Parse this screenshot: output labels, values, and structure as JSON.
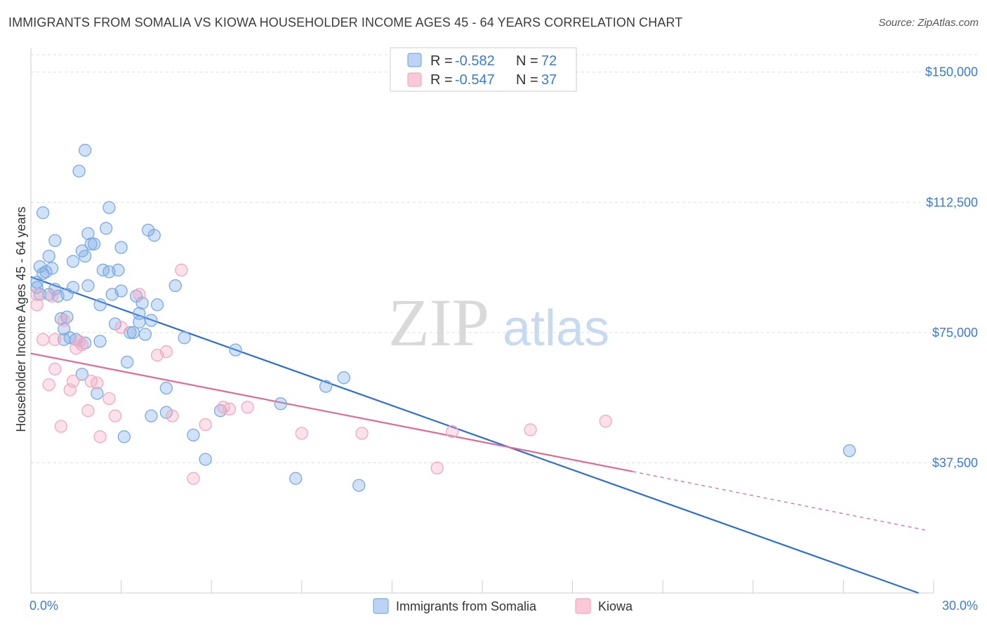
{
  "title": "IMMIGRANTS FROM SOMALIA VS KIOWA HOUSEHOLDER INCOME AGES 45 - 64 YEARS CORRELATION CHART",
  "source": "Source: ZipAtlas.com",
  "watermark": {
    "zip": "ZIP",
    "atlas": "atlas"
  },
  "chart_data": {
    "type": "scatter",
    "title": "IMMIGRANTS FROM SOMALIA VS KIOWA HOUSEHOLDER INCOME AGES 45 - 64 YEARS CORRELATION CHART",
    "xlabel": "",
    "ylabel": "Householder Income Ages 45 - 64 years",
    "xlim": [
      0,
      30
    ],
    "ylim": [
      0,
      155000
    ],
    "x_tick_labels": [
      "0.0%",
      "30.0%"
    ],
    "y_ticks": [
      {
        "value": 37500,
        "label": "$37,500"
      },
      {
        "value": 75000,
        "label": "$75,000"
      },
      {
        "value": 112500,
        "label": "$112,500"
      },
      {
        "value": 150000,
        "label": "$150,000"
      }
    ],
    "grid": "horizontal dashed",
    "legend_position": "bottom-center",
    "series": [
      {
        "name": "Immigrants from Somalia",
        "color": "#7aaae6",
        "line_color": "#2b6fd0",
        "r": "-0.582",
        "n": "72",
        "trend": {
          "x0": 0,
          "y0": 91000,
          "x1": 29.5,
          "y1": 0
        },
        "points": [
          [
            0.2,
            89500
          ],
          [
            0.3,
            86000
          ],
          [
            0.3,
            94000
          ],
          [
            0.4,
            92000
          ],
          [
            0.5,
            92500
          ],
          [
            0.4,
            109500
          ],
          [
            0.6,
            97000
          ],
          [
            0.6,
            86000
          ],
          [
            0.7,
            93500
          ],
          [
            0.8,
            87500
          ],
          [
            0.8,
            101500
          ],
          [
            0.9,
            85500
          ],
          [
            1.0,
            79000
          ],
          [
            1.1,
            73000
          ],
          [
            1.1,
            76000
          ],
          [
            1.2,
            86000
          ],
          [
            1.2,
            79500
          ],
          [
            1.3,
            73500
          ],
          [
            1.4,
            88000
          ],
          [
            1.4,
            95500
          ],
          [
            1.6,
            121500
          ],
          [
            1.7,
            98500
          ],
          [
            1.7,
            63000
          ],
          [
            1.8,
            97000
          ],
          [
            1.8,
            72000
          ],
          [
            1.8,
            127500
          ],
          [
            1.9,
            103500
          ],
          [
            1.9,
            88500
          ],
          [
            2.0,
            100500
          ],
          [
            2.1,
            100500
          ],
          [
            2.2,
            57500
          ],
          [
            2.3,
            72500
          ],
          [
            2.3,
            83000
          ],
          [
            2.4,
            93000
          ],
          [
            2.5,
            105000
          ],
          [
            2.6,
            111000
          ],
          [
            2.6,
            92500
          ],
          [
            2.7,
            86000
          ],
          [
            2.8,
            77500
          ],
          [
            2.9,
            93000
          ],
          [
            3.0,
            99500
          ],
          [
            3.0,
            87000
          ],
          [
            3.1,
            45000
          ],
          [
            3.2,
            66500
          ],
          [
            3.3,
            75000
          ],
          [
            3.4,
            75000
          ],
          [
            3.5,
            85500
          ],
          [
            3.6,
            80500
          ],
          [
            3.6,
            78000
          ],
          [
            3.7,
            83500
          ],
          [
            3.8,
            74500
          ],
          [
            3.9,
            104500
          ],
          [
            4.0,
            78500
          ],
          [
            4.0,
            51000
          ],
          [
            4.1,
            103000
          ],
          [
            4.2,
            83000
          ],
          [
            4.5,
            59000
          ],
          [
            4.5,
            52000
          ],
          [
            4.8,
            88500
          ],
          [
            5.1,
            73500
          ],
          [
            5.4,
            45500
          ],
          [
            5.8,
            38500
          ],
          [
            6.3,
            52500
          ],
          [
            6.8,
            70000
          ],
          [
            8.3,
            54500
          ],
          [
            8.8,
            33000
          ],
          [
            9.8,
            59500
          ],
          [
            10.4,
            62000
          ],
          [
            10.9,
            31000
          ],
          [
            27.2,
            41000
          ],
          [
            0.2,
            88000
          ],
          [
            1.5,
            73000
          ]
        ]
      },
      {
        "name": "Kiowa",
        "color": "#f3a8c0",
        "line_color": "#e06a95",
        "r": "-0.547",
        "n": "37",
        "trend": {
          "x0": 0,
          "y0": 69000,
          "x1": 20.0,
          "y1": 35000,
          "dash_x1": 29.8,
          "dash_y1": 18000
        },
        "points": [
          [
            0.2,
            86000
          ],
          [
            0.2,
            83000
          ],
          [
            0.4,
            73000
          ],
          [
            0.6,
            60000
          ],
          [
            0.7,
            85500
          ],
          [
            0.8,
            73000
          ],
          [
            0.8,
            64500
          ],
          [
            1.0,
            48000
          ],
          [
            1.1,
            78500
          ],
          [
            1.3,
            58500
          ],
          [
            1.4,
            61000
          ],
          [
            1.5,
            70500
          ],
          [
            1.6,
            72500
          ],
          [
            1.7,
            71500
          ],
          [
            1.9,
            52500
          ],
          [
            2.0,
            61000
          ],
          [
            2.2,
            60500
          ],
          [
            2.3,
            45000
          ],
          [
            2.6,
            56000
          ],
          [
            2.8,
            51000
          ],
          [
            3.0,
            76500
          ],
          [
            3.6,
            86000
          ],
          [
            4.2,
            68500
          ],
          [
            4.5,
            69500
          ],
          [
            4.7,
            51000
          ],
          [
            5.0,
            93000
          ],
          [
            5.4,
            33000
          ],
          [
            5.8,
            48500
          ],
          [
            6.4,
            53500
          ],
          [
            6.6,
            53000
          ],
          [
            7.2,
            53500
          ],
          [
            9.0,
            46000
          ],
          [
            11.0,
            46000
          ],
          [
            13.5,
            36000
          ],
          [
            14.0,
            46500
          ],
          [
            16.6,
            47000
          ],
          [
            19.1,
            49500
          ]
        ]
      }
    ]
  }
}
